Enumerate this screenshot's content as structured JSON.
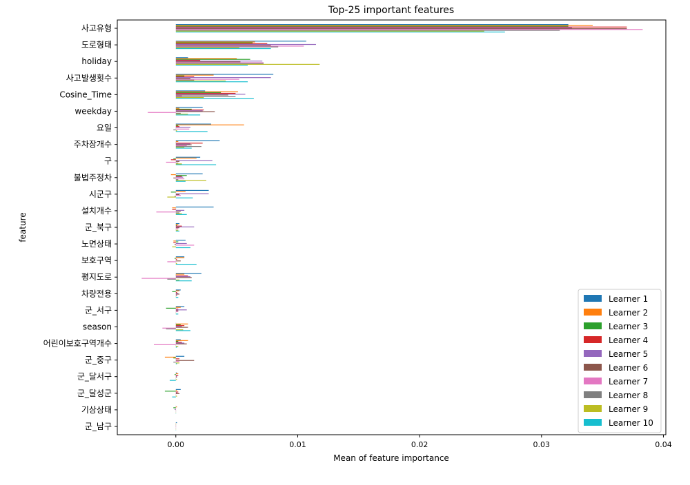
{
  "chart_data": {
    "type": "bar",
    "orientation": "horizontal",
    "title": "Top-25 important features",
    "xlabel": "Mean of feature importance",
    "ylabel": "feature",
    "xlim": [
      -0.0048,
      0.0402
    ],
    "xticks": [
      0.0,
      0.01,
      0.02,
      0.03,
      0.04
    ],
    "xtick_labels": [
      "0.00",
      "0.01",
      "0.02",
      "0.03",
      "0.04"
    ],
    "grid": false,
    "legend_position": "lower-right",
    "categories": [
      "사고유형",
      "도로형태",
      "holiday",
      "사고발생횟수",
      "Cosine_Time",
      "weekday",
      "요일",
      "주차장개수",
      "구",
      "불법주정차",
      "시군구",
      "설치개수",
      "군_북구",
      "노면상태",
      "보호구역",
      "평지도로",
      "차량전용",
      "군_서구",
      "season",
      "어린이보호구역개수",
      "군_중구",
      "군_달서구",
      "군_달성군",
      "기상상태",
      "군_남구"
    ],
    "series": [
      {
        "name": "Learner 1",
        "color": "#1f77b4",
        "values": [
          0.0322,
          0.0107,
          0.001,
          0.008,
          0.0024,
          0.0022,
          0.0029,
          0.0036,
          0.002,
          0.0022,
          0.0027,
          0.0031,
          0.0003,
          0.0008,
          0.0007,
          0.0021,
          0.0004,
          0.0007,
          0.0,
          0.0004,
          0.0007,
          0.0001,
          0.0004,
          0.0,
          0.0001
        ]
      },
      {
        "name": "Learner 2",
        "color": "#ff7f0e",
        "values": [
          0.0342,
          0.0065,
          0.005,
          0.0031,
          0.0051,
          0.0003,
          0.0056,
          0.0002,
          0.0017,
          -0.0004,
          0.0008,
          -0.0003,
          0.0002,
          -0.0002,
          0.0007,
          0.0007,
          0.0003,
          0.0004,
          0.001,
          0.001,
          -0.0009,
          0.0002,
          0.0001,
          0.0001,
          0.0
        ]
      },
      {
        "name": "Learner 3",
        "color": "#2ca02c",
        "values": [
          0.0322,
          0.0063,
          0.0061,
          0.0007,
          0.0037,
          0.0013,
          0.0002,
          0.0,
          -0.0002,
          0.0009,
          -0.0004,
          0.0,
          0.0001,
          0.0002,
          -0.0001,
          0.0,
          -0.0003,
          -0.0008,
          0.0004,
          0.0002,
          -0.0002,
          -0.0001,
          -0.0009,
          -0.0002,
          0.0
        ]
      },
      {
        "name": "Learner 4",
        "color": "#d62728",
        "values": [
          0.037,
          0.0075,
          0.002,
          0.0015,
          0.0049,
          0.0023,
          0.0003,
          0.0022,
          -0.0004,
          0.0005,
          0.0,
          -0.0003,
          0.0005,
          -0.0002,
          0.0001,
          0.001,
          0.0001,
          0.0002,
          0.0007,
          0.0005,
          0.0003,
          0.0002,
          0.0002,
          0.0,
          0.0
        ]
      },
      {
        "name": "Learner 5",
        "color": "#9467bd",
        "values": [
          0.0325,
          0.0115,
          0.0071,
          0.0078,
          0.0057,
          0.0022,
          0.0012,
          0.0012,
          0.003,
          0.0006,
          0.0027,
          0.0007,
          0.0015,
          0.0009,
          0.0,
          0.0012,
          0.0002,
          0.0009,
          0.0005,
          0.0007,
          0.0,
          0.0001,
          0.0001,
          -0.0001,
          0.0
        ]
      },
      {
        "name": "Learner 6",
        "color": "#8c564b",
        "values": [
          0.037,
          0.0078,
          0.0053,
          0.0012,
          0.0043,
          0.0032,
          0.0,
          0.0013,
          0.0003,
          -0.0002,
          0.0003,
          0.0004,
          0.0003,
          -0.0001,
          0.0004,
          0.0013,
          0.0003,
          0.0002,
          0.001,
          0.0009,
          0.0015,
          0.0001,
          0.0003,
          0.0,
          0.0
        ]
      },
      {
        "name": "Learner 7",
        "color": "#e377c2",
        "values": [
          0.0383,
          0.0105,
          0.0072,
          0.0052,
          0.0005,
          -0.0023,
          0.0011,
          0.0009,
          -0.0008,
          0.0007,
          0.0004,
          -0.0016,
          0.0002,
          0.0015,
          -0.0007,
          -0.0028,
          0.0001,
          0.0002,
          -0.0011,
          -0.0018,
          0.0003,
          0.0,
          0.0,
          0.0,
          0.0
        ]
      },
      {
        "name": "Learner 8",
        "color": "#7f7f7f",
        "values": [
          0.0315,
          0.0084,
          0.0072,
          0.0015,
          0.0049,
          0.0004,
          -0.0002,
          0.0021,
          0.0002,
          0.0002,
          -0.0001,
          0.0003,
          0.0,
          0.0,
          0.0,
          -0.0007,
          0.0001,
          0.0,
          -0.0008,
          0.0,
          -0.0002,
          0.0,
          0.0,
          0.0,
          0.0
        ]
      },
      {
        "name": "Learner 9",
        "color": "#bcbd22",
        "values": [
          0.0253,
          0.0052,
          0.0118,
          0.0041,
          0.0023,
          0.001,
          0.0001,
          0.0007,
          0.0005,
          0.0025,
          -0.0007,
          0.0005,
          0.0002,
          -0.0003,
          0.0001,
          0.0003,
          0.0,
          0.0,
          0.0006,
          0.0002,
          0.0003,
          0.0001,
          0.0001,
          0.0,
          0.0
        ]
      },
      {
        "name": "Learner 10",
        "color": "#17becf",
        "values": [
          0.027,
          0.0078,
          0.0059,
          0.0059,
          0.0064,
          0.002,
          0.0026,
          0.0013,
          0.0033,
          0.0008,
          0.0014,
          0.0009,
          0.0003,
          0.0012,
          0.0017,
          0.0013,
          0.0002,
          0.0002,
          0.0012,
          0.0001,
          0.0001,
          -0.0005,
          -0.0003,
          0.0,
          0.0
        ]
      }
    ]
  }
}
